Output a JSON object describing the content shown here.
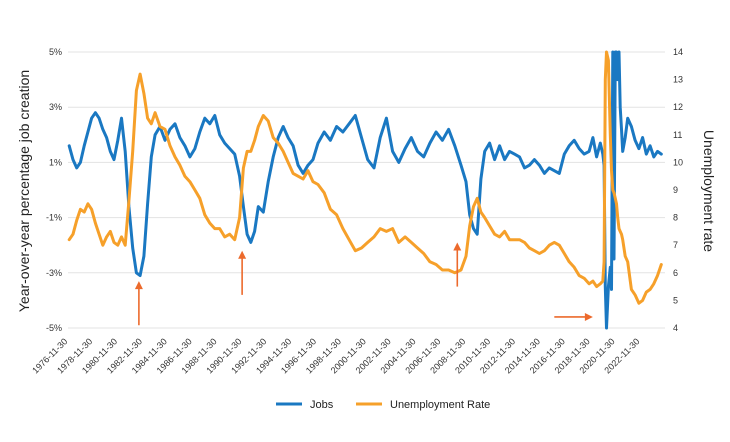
{
  "chart_data": {
    "type": "line",
    "title": "",
    "xlabel": "",
    "ylabel_left": "Year-over-year percentage job creation",
    "ylabel_right": "Unemployment rate",
    "y_left_range": [
      -5,
      5
    ],
    "y_left_ticks": [
      5,
      3,
      1,
      -1,
      -3,
      -5
    ],
    "y_left_tick_labels": [
      "5%",
      "3%",
      "1%",
      "-1%",
      "-3%",
      "-5%"
    ],
    "y_right_range": [
      4,
      14
    ],
    "y_right_ticks": [
      4,
      5,
      6,
      7,
      8,
      9,
      10,
      11,
      12,
      13,
      14
    ],
    "y_right_tick_labels": [
      "4",
      "5",
      "6",
      "7",
      "8",
      "9",
      "10",
      "11",
      "12",
      "13",
      "14"
    ],
    "x_range": [
      1976.9,
      2024.9
    ],
    "x_tick_labels": [
      "1976-11-30",
      "1978-11-30",
      "1980-11-30",
      "1982-11-30",
      "1984-11-30",
      "1986-11-30",
      "1988-11-30",
      "1990-11-30",
      "1992-11-30",
      "1994-11-30",
      "1996-11-30",
      "1998-11-30",
      "2000-11-30",
      "2002-11-30",
      "2004-11-30",
      "2006-11-30",
      "2008-11-30",
      "2010-11-30",
      "2012-11-30",
      "2014-11-30",
      "2016-11-30",
      "2018-11-30",
      "2020-11-30",
      "2022-11-30"
    ],
    "x_tick_values": [
      1976.9,
      1978.9,
      1980.9,
      1982.9,
      1984.9,
      1986.9,
      1988.9,
      1990.9,
      1992.9,
      1994.9,
      1996.9,
      1998.9,
      2000.9,
      2002.9,
      2004.9,
      2006.9,
      2008.9,
      2010.9,
      2012.9,
      2014.9,
      2016.9,
      2018.9,
      2020.9,
      2022.9
    ],
    "grid": true,
    "legend_position": "bottom-center",
    "series": [
      {
        "name": "Jobs",
        "axis": "left",
        "color": "#1a78c2",
        "x": [
          1977.0,
          1977.3,
          1977.6,
          1977.9,
          1978.2,
          1978.5,
          1978.8,
          1979.1,
          1979.4,
          1979.7,
          1980.0,
          1980.3,
          1980.6,
          1980.9,
          1981.2,
          1981.5,
          1981.8,
          1982.1,
          1982.4,
          1982.7,
          1983.0,
          1983.3,
          1983.6,
          1983.9,
          1984.3,
          1984.7,
          1985.1,
          1985.5,
          1985.9,
          1986.3,
          1986.7,
          1987.1,
          1987.5,
          1987.9,
          1988.3,
          1988.7,
          1989.1,
          1989.5,
          1989.9,
          1990.3,
          1990.7,
          1991.0,
          1991.3,
          1991.6,
          1991.9,
          1992.2,
          1992.6,
          1993.0,
          1993.4,
          1993.8,
          1994.2,
          1994.6,
          1995.0,
          1995.4,
          1995.8,
          1996.2,
          1996.6,
          1997.0,
          1997.5,
          1998.0,
          1998.5,
          1999.0,
          1999.5,
          2000.0,
          2000.5,
          2001.0,
          2001.5,
          2002.0,
          2002.5,
          2003.0,
          2003.5,
          2004.0,
          2004.5,
          2005.0,
          2005.5,
          2006.0,
          2006.5,
          2007.0,
          2007.5,
          2008.0,
          2008.5,
          2008.9,
          2009.2,
          2009.5,
          2009.8,
          2010.1,
          2010.4,
          2010.8,
          2011.2,
          2011.6,
          2012.0,
          2012.4,
          2012.8,
          2013.2,
          2013.6,
          2014.0,
          2014.4,
          2014.8,
          2015.2,
          2015.6,
          2016.0,
          2016.4,
          2016.8,
          2017.2,
          2017.6,
          2018.0,
          2018.4,
          2018.8,
          2019.1,
          2019.4,
          2019.7,
          2019.9,
          2020.0,
          2020.1,
          2020.2,
          2020.35,
          2020.5,
          2020.6,
          2020.7,
          2020.8,
          2020.9,
          2021.0,
          2021.1,
          2021.2,
          2021.3,
          2021.4,
          2021.5,
          2021.7,
          2021.9,
          2022.2,
          2022.5,
          2022.8,
          2023.1,
          2023.4,
          2023.7,
          2024.0,
          2024.3,
          2024.6
        ],
        "values": [
          1.6,
          1.1,
          0.8,
          1.0,
          1.6,
          2.1,
          2.6,
          2.8,
          2.6,
          2.2,
          1.9,
          1.4,
          1.1,
          1.8,
          2.6,
          1.4,
          -0.6,
          -2.1,
          -3.0,
          -3.1,
          -2.4,
          -0.5,
          1.2,
          2.0,
          2.3,
          1.8,
          2.2,
          2.4,
          1.9,
          1.6,
          1.2,
          1.5,
          2.1,
          2.6,
          2.4,
          2.7,
          2.0,
          1.7,
          1.5,
          1.3,
          0.5,
          -0.6,
          -1.6,
          -1.9,
          -1.5,
          -0.6,
          -0.8,
          0.3,
          1.2,
          1.9,
          2.3,
          1.9,
          1.6,
          0.9,
          0.6,
          0.9,
          1.1,
          1.7,
          2.1,
          1.8,
          2.3,
          2.1,
          2.4,
          2.7,
          1.9,
          1.1,
          0.8,
          1.9,
          2.6,
          1.4,
          1.0,
          1.5,
          1.9,
          1.4,
          1.2,
          1.7,
          2.1,
          1.8,
          2.2,
          1.6,
          0.9,
          0.3,
          -0.9,
          -1.4,
          -1.6,
          0.4,
          1.4,
          1.7,
          1.1,
          1.6,
          1.1,
          1.4,
          1.3,
          1.2,
          0.8,
          0.9,
          1.1,
          0.9,
          0.6,
          0.8,
          0.7,
          0.6,
          1.3,
          1.6,
          1.8,
          1.5,
          1.3,
          1.4,
          1.9,
          1.2,
          1.7,
          1.3,
          0.9,
          -3.5,
          -5.0,
          -3.5,
          -2.8,
          -3.6,
          5.0,
          -2.5,
          5.0,
          5.0,
          4.0,
          5.0,
          3.0,
          2.2,
          1.4,
          1.9,
          2.6,
          2.3,
          1.8,
          1.5,
          1.9,
          1.3,
          1.6,
          1.2,
          1.4,
          1.3
        ]
      },
      {
        "name": "Unemployment Rate",
        "axis": "right",
        "color": "#f6a02a",
        "x": [
          1977.0,
          1977.3,
          1977.6,
          1977.9,
          1978.2,
          1978.5,
          1978.8,
          1979.1,
          1979.4,
          1979.7,
          1980.0,
          1980.3,
          1980.6,
          1980.9,
          1981.2,
          1981.5,
          1981.8,
          1982.1,
          1982.4,
          1982.7,
          1983.0,
          1983.3,
          1983.6,
          1983.9,
          1984.3,
          1984.7,
          1985.1,
          1985.5,
          1985.9,
          1986.3,
          1986.7,
          1987.1,
          1987.5,
          1987.9,
          1988.3,
          1988.7,
          1989.1,
          1989.5,
          1989.9,
          1990.3,
          1990.7,
          1991.0,
          1991.3,
          1991.6,
          1991.9,
          1992.2,
          1992.6,
          1993.0,
          1993.4,
          1993.8,
          1994.2,
          1994.6,
          1995.0,
          1995.4,
          1995.8,
          1996.2,
          1996.6,
          1997.0,
          1997.5,
          1998.0,
          1998.5,
          1999.0,
          1999.5,
          2000.0,
          2000.5,
          2001.0,
          2001.5,
          2002.0,
          2002.5,
          2003.0,
          2003.5,
          2004.0,
          2004.5,
          2005.0,
          2005.5,
          2006.0,
          2006.5,
          2007.0,
          2007.5,
          2008.0,
          2008.5,
          2008.9,
          2009.2,
          2009.5,
          2009.8,
          2010.1,
          2010.4,
          2010.8,
          2011.2,
          2011.6,
          2012.0,
          2012.4,
          2012.8,
          2013.2,
          2013.6,
          2014.0,
          2014.4,
          2014.8,
          2015.2,
          2015.6,
          2016.0,
          2016.4,
          2016.8,
          2017.2,
          2017.6,
          2018.0,
          2018.4,
          2018.8,
          2019.1,
          2019.4,
          2019.7,
          2019.9,
          2020.0,
          2020.1,
          2020.2,
          2020.35,
          2020.5,
          2020.6,
          2020.7,
          2020.8,
          2020.9,
          2021.0,
          2021.1,
          2021.2,
          2021.3,
          2021.4,
          2021.5,
          2021.7,
          2021.9,
          2022.2,
          2022.5,
          2022.8,
          2023.1,
          2023.4,
          2023.7,
          2024.0,
          2024.3,
          2024.6
        ],
        "values": [
          7.2,
          7.4,
          7.9,
          8.3,
          8.2,
          8.5,
          8.3,
          7.8,
          7.4,
          7.0,
          7.3,
          7.5,
          7.1,
          7.0,
          7.3,
          7.0,
          8.6,
          10.4,
          12.6,
          13.2,
          12.5,
          11.6,
          11.4,
          11.8,
          11.3,
          11.2,
          10.6,
          10.2,
          9.9,
          9.5,
          9.3,
          9.0,
          8.7,
          8.1,
          7.8,
          7.6,
          7.6,
          7.3,
          7.4,
          7.2,
          8.0,
          9.8,
          10.4,
          10.4,
          10.8,
          11.3,
          11.7,
          11.5,
          10.9,
          10.7,
          10.4,
          10.0,
          9.6,
          9.5,
          9.4,
          9.7,
          9.3,
          9.2,
          8.9,
          8.3,
          8.1,
          7.6,
          7.2,
          6.8,
          6.9,
          7.1,
          7.3,
          7.6,
          7.5,
          7.6,
          7.1,
          7.3,
          7.1,
          6.9,
          6.7,
          6.4,
          6.3,
          6.1,
          6.1,
          6.0,
          6.1,
          6.6,
          7.7,
          8.4,
          8.7,
          8.2,
          8.0,
          7.7,
          7.4,
          7.3,
          7.5,
          7.2,
          7.2,
          7.2,
          7.1,
          6.9,
          6.8,
          6.7,
          6.8,
          7.0,
          7.1,
          7.0,
          6.7,
          6.4,
          6.2,
          5.9,
          5.8,
          5.6,
          5.7,
          5.5,
          5.6,
          5.7,
          6.4,
          13.0,
          14.0,
          13.7,
          11.0,
          9.7,
          9.0,
          8.9,
          8.7,
          8.5,
          8.0,
          7.6,
          7.5,
          7.4,
          7.2,
          6.6,
          6.4,
          5.4,
          5.2,
          4.9,
          5.0,
          5.3,
          5.4,
          5.6,
          5.9,
          6.3
        ]
      }
    ],
    "annotations": [
      {
        "type": "arrow",
        "direction": "up",
        "x": 1982.6,
        "y_left_tip": -3.3,
        "y_left_tail": -4.9
      },
      {
        "type": "arrow",
        "direction": "up",
        "x": 1990.9,
        "y_left_tip": -2.2,
        "y_left_tail": -3.8
      },
      {
        "type": "arrow",
        "direction": "up",
        "x": 2008.2,
        "y_left_tip": -1.9,
        "y_left_tail": -3.5
      },
      {
        "type": "arrow",
        "direction": "right",
        "y_left": -4.6,
        "x_tail": 2016.0,
        "x_tip": 2019.1
      }
    ],
    "annotation_color": "#ec6a2c"
  }
}
